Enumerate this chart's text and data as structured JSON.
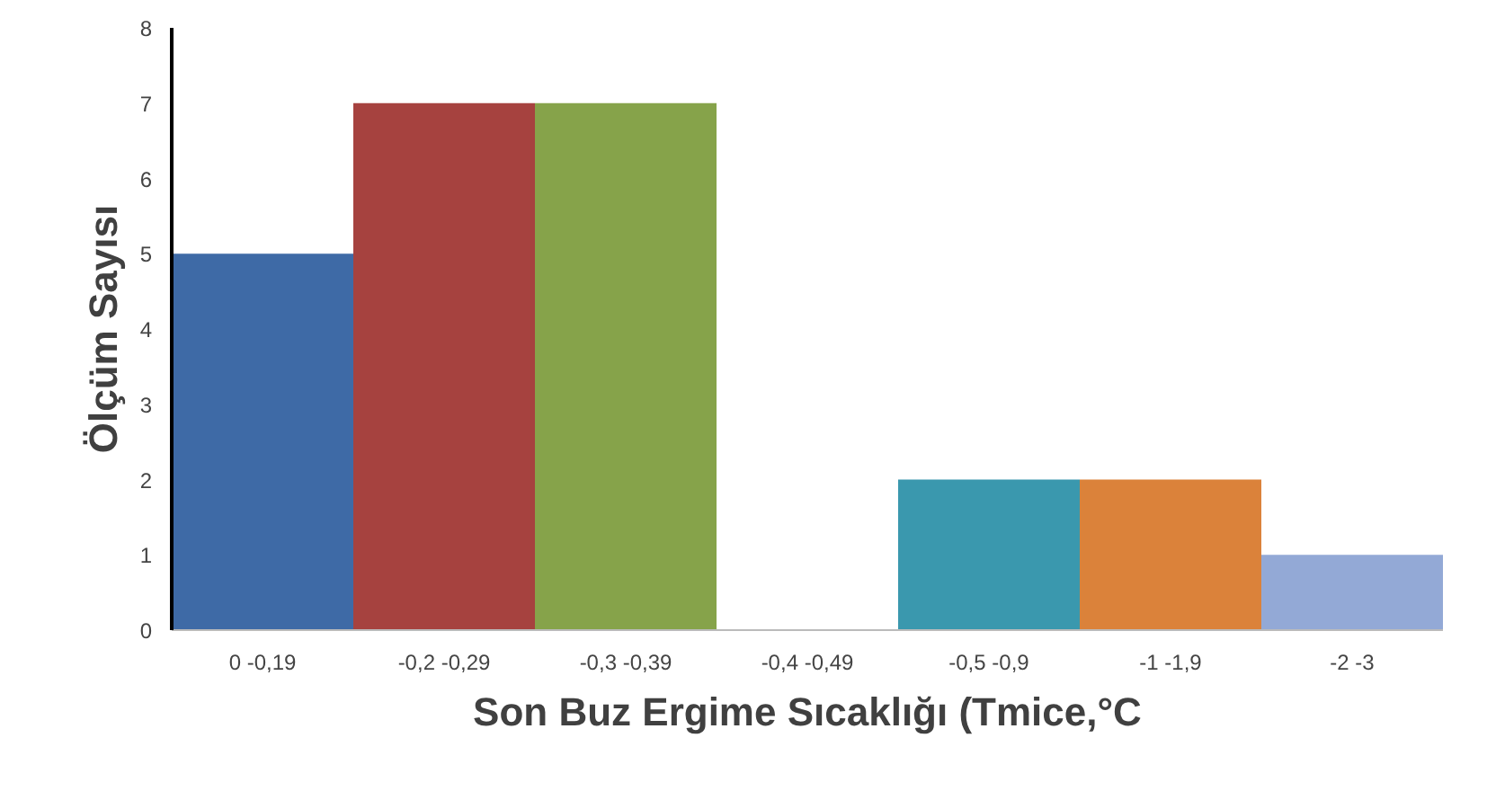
{
  "chart_data": {
    "type": "bar",
    "xlabel": "Son Buz Ergime Sıcaklığı (Tmice,°C",
    "ylabel": "Ölçüm Sayısı",
    "categories": [
      "0 -0,19",
      "-0,2 -0,29",
      "-0,3 -0,39",
      "-0,4 -0,49",
      "-0,5 -0,9",
      "-1 -1,9",
      "-2 -3"
    ],
    "values": [
      5,
      7,
      7,
      0,
      2,
      2,
      1
    ],
    "colors": [
      "#3e6aa6",
      "#a6423f",
      "#86a34a",
      "#7b5f9e",
      "#3a98ae",
      "#db823a",
      "#93a9d6"
    ],
    "ylim": [
      0,
      8
    ],
    "yticks": [
      0,
      1,
      2,
      3,
      4,
      5,
      6,
      7,
      8
    ],
    "grid": false
  }
}
